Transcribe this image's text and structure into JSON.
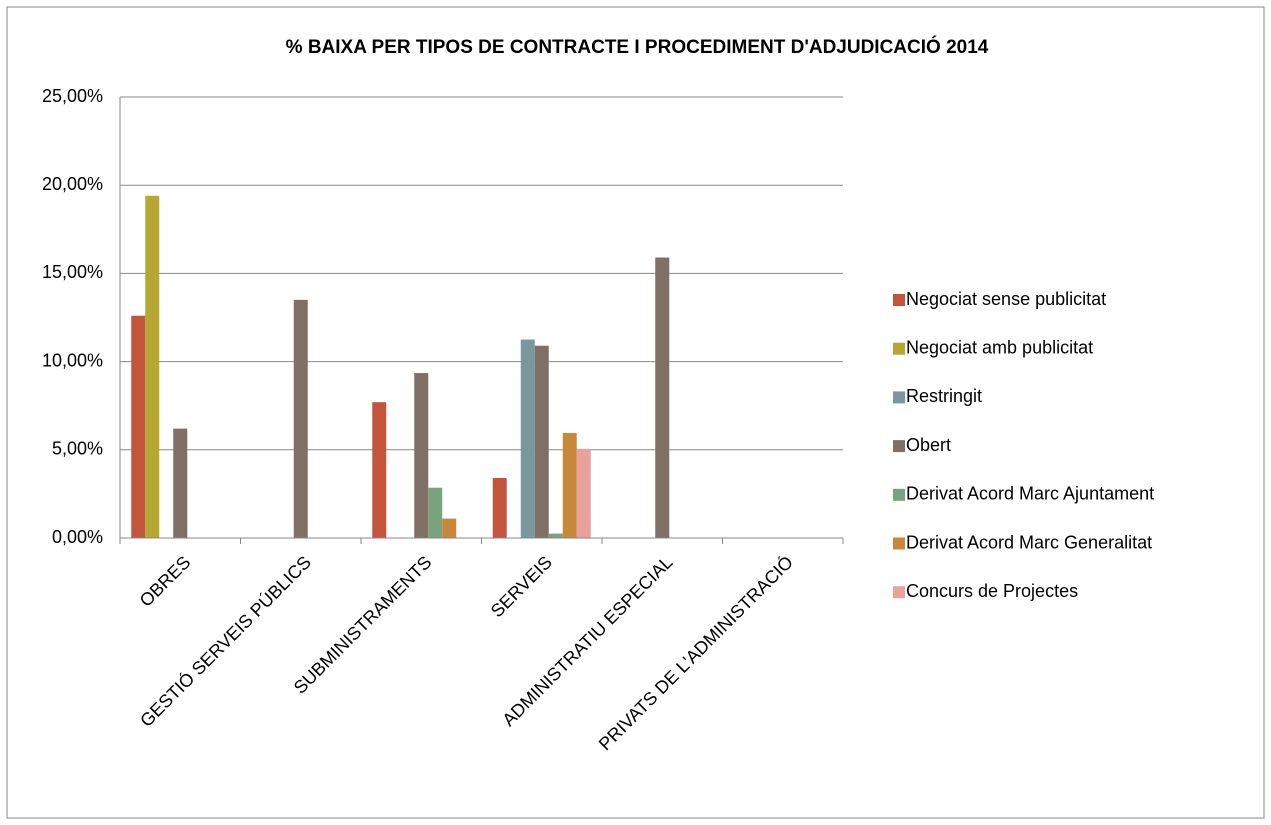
{
  "chart_data": {
    "type": "bar",
    "title": "% BAIXA PER TIPOS DE CONTRACTE I PROCEDIMENT D'ADJUDICACIÓ 2014",
    "categories": [
      "OBRES",
      "GESTIÓ SERVEIS PÚBLICS",
      "SUBMINISTRAMENTS",
      "SERVEIS",
      "ADMINISTRATIU ESPECIAL",
      "PRIVATS DE L'ADMINISTRACIÓ"
    ],
    "series": [
      {
        "name": "Negociat sense publicitat",
        "color": "#c4553d",
        "values": [
          12.6,
          null,
          7.7,
          3.4,
          null,
          null
        ]
      },
      {
        "name": "Negociat amb publicitat",
        "color": "#b6a632",
        "values": [
          19.4,
          null,
          null,
          null,
          null,
          null
        ]
      },
      {
        "name": "Restringit",
        "color": "#7a979d",
        "values": [
          null,
          null,
          null,
          11.25,
          null,
          null
        ]
      },
      {
        "name": "Obert",
        "color": "#7f6f64",
        "values": [
          6.2,
          13.5,
          9.35,
          10.9,
          15.9,
          null
        ]
      },
      {
        "name": "Derivat Acord Marc Ajuntament",
        "color": "#7aa27c",
        "values": [
          null,
          null,
          2.85,
          0.25,
          null,
          null
        ]
      },
      {
        "name": "Derivat Acord Marc Generalitat",
        "color": "#c8883a",
        "values": [
          null,
          null,
          1.1,
          5.95,
          null,
          null
        ]
      },
      {
        "name": "Concurs de Projectes",
        "color": "#e8a19b",
        "values": [
          null,
          null,
          null,
          5.05,
          null,
          null
        ]
      }
    ],
    "ylim": [
      0,
      25
    ],
    "yticks": [
      {
        "value": 0,
        "label": "0,00%"
      },
      {
        "value": 5,
        "label": "5,00%"
      },
      {
        "value": 10,
        "label": "10,00%"
      },
      {
        "value": 15,
        "label": "15,00%"
      },
      {
        "value": 20,
        "label": "20,00%"
      },
      {
        "value": 25,
        "label": "25,00%"
      }
    ],
    "grid": true,
    "legend": "right"
  }
}
